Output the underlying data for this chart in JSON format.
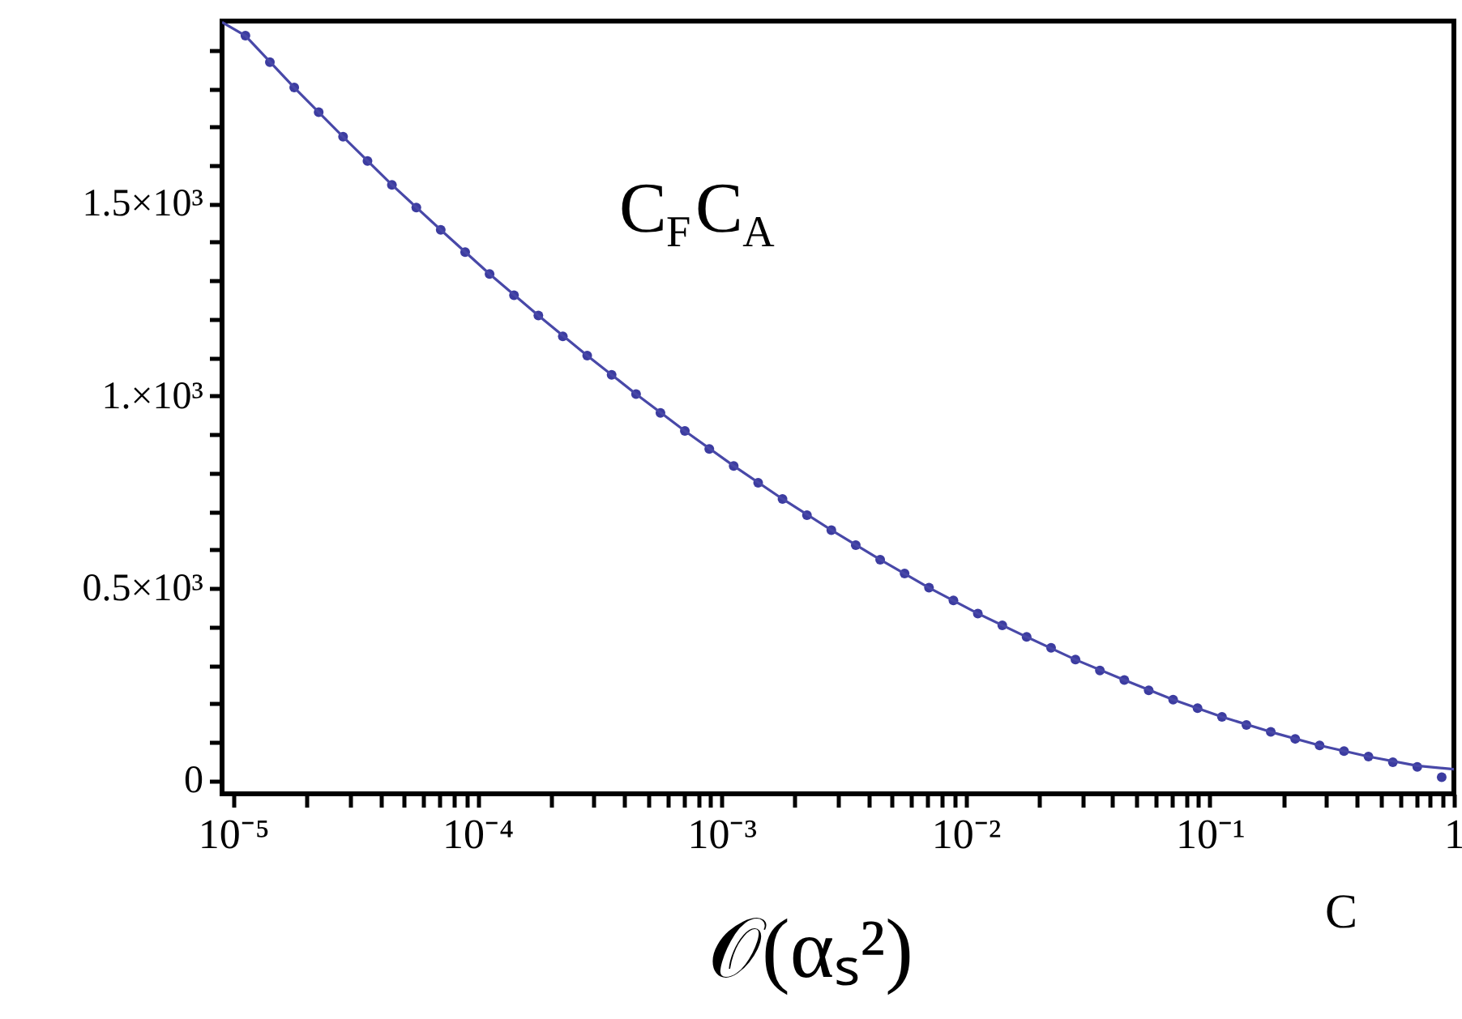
{
  "chart_data": {
    "type": "line",
    "x": [
      1.122e-05,
      1.413e-05,
      1.778e-05,
      2.239e-05,
      2.818e-05,
      3.548e-05,
      4.467e-05,
      5.623e-05,
      7.079e-05,
      8.913e-05,
      0.0001122,
      0.0001413,
      0.0001778,
      0.0002239,
      0.0002818,
      0.0003548,
      0.0004467,
      0.0005623,
      0.0007079,
      0.0008913,
      0.001122,
      0.001413,
      0.001778,
      0.002239,
      0.002818,
      0.003548,
      0.004467,
      0.005623,
      0.007079,
      0.008913,
      0.01122,
      0.01413,
      0.01778,
      0.02239,
      0.02818,
      0.03548,
      0.04467,
      0.05623,
      0.07079,
      0.08913,
      0.1122,
      0.1413,
      0.1778,
      0.2239,
      0.2818,
      0.3548,
      0.4467,
      0.5623,
      0.7079,
      0.8913
    ],
    "series": [
      {
        "type": "scatter",
        "color": "#3c3ca0",
        "marker": "circle",
        "values": [
          1937,
          1868,
          1802,
          1738,
          1674,
          1611,
          1549,
          1490,
          1432,
          1374,
          1317,
          1262,
          1209,
          1155,
          1105,
          1055,
          1005,
          956,
          909,
          862,
          818,
          774,
          732,
          690,
          651,
          612,
          574,
          538,
          501,
          468,
          434,
          403,
          373,
          345,
          314,
          286,
          261,
          234,
          210,
          188,
          165,
          144,
          126,
          108,
          91,
          76,
          62,
          47,
          35,
          8
        ]
      },
      {
        "color": "#4848a8",
        "line_style": "solid",
        "x": [
          9e-06,
          1.122e-05,
          1.778e-05,
          2.818e-05,
          4.467e-05,
          7.079e-05,
          0.0001122,
          0.0001778,
          0.0002818,
          0.0004467,
          0.0007079,
          0.001122,
          0.001778,
          0.002818,
          0.004467,
          0.007079,
          0.01122,
          0.01778,
          0.02818,
          0.04467,
          0.07079,
          0.1122,
          0.1778,
          0.2818,
          0.4467,
          0.7079,
          1
        ],
        "values": [
          1972,
          1937,
          1802,
          1674,
          1549,
          1432,
          1317,
          1209,
          1105,
          1005,
          909,
          818,
          732,
          651,
          574,
          501,
          434,
          373,
          314,
          261,
          210,
          165,
          126,
          91,
          62,
          38,
          29
        ]
      }
    ],
    "xlabel": "C",
    "annotations": [
      "C$_{F}$C$_{A}$",
      "𝒪(αₛ²)"
    ],
    "log": "x",
    "xlim": [
      9e-06,
      1
    ],
    "ylim": [
      -35,
      1975
    ],
    "xticks": [
      {
        "value": 1e-05,
        "label": "10⁻⁵"
      },
      {
        "value": 2e-05,
        "label": null
      },
      {
        "value": 3e-05,
        "label": null
      },
      {
        "value": 4e-05,
        "label": null
      },
      {
        "value": 5e-05,
        "label": null
      },
      {
        "value": 6e-05,
        "label": null
      },
      {
        "value": 7e-05,
        "label": null
      },
      {
        "value": 8e-05,
        "label": null
      },
      {
        "value": 9e-05,
        "label": null
      },
      {
        "value": 0.0001,
        "label": "10⁻⁴"
      },
      {
        "value": 0.0002,
        "label": null
      },
      {
        "value": 0.0003,
        "label": null
      },
      {
        "value": 0.0004,
        "label": null
      },
      {
        "value": 0.0005,
        "label": null
      },
      {
        "value": 0.0006,
        "label": null
      },
      {
        "value": 0.0007,
        "label": null
      },
      {
        "value": 0.0008,
        "label": null
      },
      {
        "value": 0.0009,
        "label": null
      },
      {
        "value": 0.001,
        "label": "10⁻³"
      },
      {
        "value": 0.002,
        "label": null
      },
      {
        "value": 0.003,
        "label": null
      },
      {
        "value": 0.004,
        "label": null
      },
      {
        "value": 0.005,
        "label": null
      },
      {
        "value": 0.006,
        "label": null
      },
      {
        "value": 0.007,
        "label": null
      },
      {
        "value": 0.008,
        "label": null
      },
      {
        "value": 0.009,
        "label": null
      },
      {
        "value": 0.01,
        "label": "10⁻²"
      },
      {
        "value": 0.02,
        "label": null
      },
      {
        "value": 0.03,
        "label": null
      },
      {
        "value": 0.04,
        "label": null
      },
      {
        "value": 0.05,
        "label": null
      },
      {
        "value": 0.06,
        "label": null
      },
      {
        "value": 0.07,
        "label": null
      },
      {
        "value": 0.08,
        "label": null
      },
      {
        "value": 0.09,
        "label": null
      },
      {
        "value": 0.1,
        "label": "10⁻¹"
      },
      {
        "value": 0.2,
        "label": null
      },
      {
        "value": 0.3,
        "label": null
      },
      {
        "value": 0.4,
        "label": null
      },
      {
        "value": 0.5,
        "label": null
      },
      {
        "value": 0.6,
        "label": null
      },
      {
        "value": 0.7,
        "label": null
      },
      {
        "value": 0.8,
        "label": null
      },
      {
        "value": 0.9,
        "label": null
      },
      1
    ],
    "yticks": [
      0,
      {
        "value": 100,
        "label": null
      },
      {
        "value": 200,
        "label": null
      },
      {
        "value": 300,
        "label": null
      },
      {
        "value": 400,
        "label": null
      },
      {
        "value": 500,
        "label": "0.5×10³"
      },
      {
        "value": 600,
        "label": null
      },
      {
        "value": 700,
        "label": null
      },
      {
        "value": 800,
        "label": null
      },
      {
        "value": 900,
        "label": null
      },
      {
        "value": 1000,
        "label": "1.×10³"
      },
      {
        "value": 1100,
        "label": null
      },
      {
        "value": 1200,
        "label": null
      },
      {
        "value": 1300,
        "label": null
      },
      {
        "value": 1400,
        "label": null
      },
      {
        "value": 1500,
        "label": "1.5×10³"
      },
      {
        "value": 1600,
        "label": null
      },
      {
        "value": 1700,
        "label": null
      },
      {
        "value": 1800,
        "label": null
      },
      {
        "value": 1900,
        "label": null
      }
    ],
    "grid": false
  }
}
